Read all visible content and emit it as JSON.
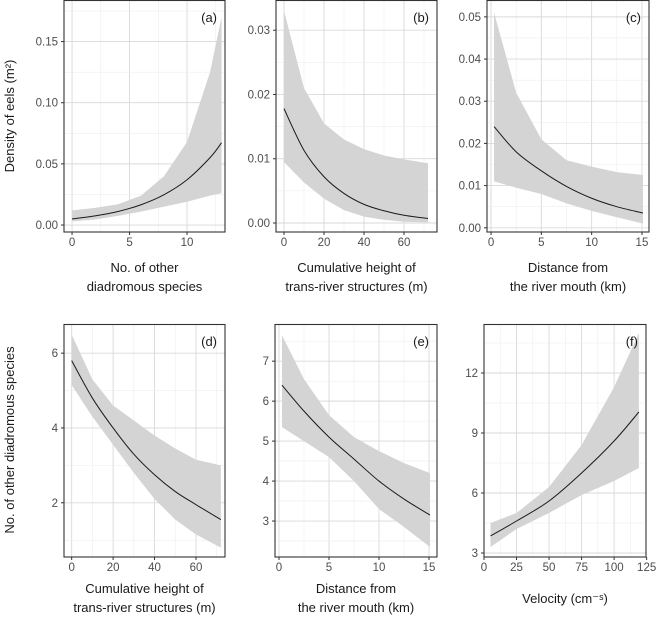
{
  "chart_data": [
    {
      "id": "a",
      "type": "line",
      "panel_label": "(a)",
      "xlabel": [
        "No. of other",
        "diadromous species"
      ],
      "ylabel": "Density of eels (m²)",
      "xlim": [
        -0.7,
        13.3
      ],
      "ylim": [
        -0.0057,
        0.184
      ],
      "xticks": [
        0,
        5,
        10
      ],
      "xtick_labels": [
        "0",
        "5",
        "10"
      ],
      "yticks": [
        0,
        0.05,
        0.1,
        0.15
      ],
      "ytick_labels": [
        "0.00",
        "0.05",
        "0.10",
        "0.15"
      ],
      "x": [
        0,
        2,
        4,
        6,
        8,
        10,
        12,
        13
      ],
      "fit": [
        0.005,
        0.0075,
        0.0111,
        0.0166,
        0.0248,
        0.037,
        0.0551,
        0.0673
      ],
      "lower": [
        0.003,
        0.0045,
        0.0075,
        0.011,
        0.015,
        0.019,
        0.024,
        0.026
      ],
      "upper": [
        0.012,
        0.014,
        0.017,
        0.024,
        0.04,
        0.068,
        0.125,
        0.17
      ]
    },
    {
      "id": "b",
      "type": "line",
      "panel_label": "(b)",
      "xlabel": [
        "Cumulative height of",
        "trans-river structures (m)"
      ],
      "xlim": [
        -4,
        76.5
      ],
      "ylim": [
        -0.0014,
        0.0347
      ],
      "xticks": [
        0,
        20,
        40,
        60
      ],
      "xtick_labels": [
        "0",
        "20",
        "40",
        "60"
      ],
      "yticks": [
        0,
        0.01,
        0.02,
        0.03
      ],
      "ytick_labels": [
        "0.00",
        "0.01",
        "0.02",
        "0.03"
      ],
      "x": [
        0,
        10,
        20,
        30,
        40,
        50,
        60,
        72
      ],
      "fit": [
        0.0178,
        0.0113,
        0.0072,
        0.0046,
        0.0029,
        0.0019,
        0.0012,
        0.0007
      ],
      "lower": [
        0.0095,
        0.0063,
        0.0038,
        0.002,
        0.001,
        0.0005,
        0.0002,
        0.0001
      ],
      "upper": [
        0.033,
        0.021,
        0.0155,
        0.013,
        0.0115,
        0.0105,
        0.0099,
        0.0093
      ]
    },
    {
      "id": "c",
      "type": "line",
      "panel_label": "(c)",
      "xlabel": [
        "Distance from",
        "the river mouth (km)"
      ],
      "xlim": [
        -0.4,
        15.7
      ],
      "ylim": [
        -0.001,
        0.054
      ],
      "xticks": [
        0,
        5,
        10,
        15
      ],
      "xtick_labels": [
        "0",
        "5",
        "10",
        "15"
      ],
      "yticks": [
        0,
        0.01,
        0.02,
        0.03,
        0.04,
        0.05
      ],
      "ytick_labels": [
        "0.00",
        "0.01",
        "0.02",
        "0.03",
        "0.04",
        "0.05"
      ],
      "x": [
        0.3,
        2.5,
        5,
        7.5,
        10,
        12.5,
        15.1
      ],
      "fit": [
        0.024,
        0.018,
        0.0135,
        0.0098,
        0.007,
        0.005,
        0.0035
      ],
      "lower": [
        0.011,
        0.0095,
        0.008,
        0.0058,
        0.004,
        0.0025,
        0.001
      ],
      "upper": [
        0.051,
        0.032,
        0.021,
        0.016,
        0.0145,
        0.0132,
        0.0125
      ]
    },
    {
      "id": "d",
      "type": "line",
      "panel_label": "(d)",
      "xlabel": [
        "Cumulative height of",
        "trans-river structures (m)"
      ],
      "ylabel": "No. of other diadromous species",
      "xlim": [
        -3.7,
        74
      ],
      "ylim": [
        0.55,
        6.78
      ],
      "xticks": [
        0,
        20,
        40,
        60
      ],
      "xtick_labels": [
        "0",
        "20",
        "40",
        "60"
      ],
      "yticks": [
        2,
        4,
        6
      ],
      "ytick_labels": [
        "2",
        "4",
        "6"
      ],
      "x": [
        0,
        10,
        20,
        30,
        40,
        50,
        60,
        72
      ],
      "fit": [
        5.8,
        4.8,
        4.0,
        3.3,
        2.75,
        2.3,
        1.95,
        1.55
      ],
      "lower": [
        5.15,
        4.3,
        3.55,
        2.8,
        2.1,
        1.55,
        1.15,
        0.8
      ],
      "upper": [
        6.5,
        5.3,
        4.6,
        4.2,
        3.8,
        3.45,
        3.15,
        3.0
      ]
    },
    {
      "id": "e",
      "type": "line",
      "panel_label": "(e)",
      "xlabel": [
        "Distance from",
        "the river mouth (km)"
      ],
      "xlim": [
        -0.4,
        15.8
      ],
      "ylim": [
        2.1,
        7.93
      ],
      "xticks": [
        0,
        5,
        10,
        15
      ],
      "xtick_labels": [
        "0",
        "5",
        "10",
        "15"
      ],
      "yticks": [
        3,
        4,
        5,
        6,
        7
      ],
      "ytick_labels": [
        "3",
        "4",
        "5",
        "6",
        "7"
      ],
      "x": [
        0.3,
        2.5,
        5,
        7.5,
        10,
        12.5,
        15.1
      ],
      "fit": [
        6.4,
        5.75,
        5.1,
        4.55,
        4.0,
        3.55,
        3.15
      ],
      "lower": [
        5.35,
        5.0,
        4.6,
        4.0,
        3.3,
        2.85,
        2.35
      ],
      "upper": [
        7.65,
        6.55,
        5.65,
        5.1,
        4.75,
        4.45,
        4.2
      ]
    },
    {
      "id": "f",
      "type": "line",
      "panel_label": "(f)",
      "xlabel": [
        "Velocity (cm⁻ˢ)"
      ],
      "xlim": [
        0,
        124.5
      ],
      "ylim": [
        2.8,
        14.45
      ],
      "xticks": [
        0,
        25,
        50,
        75,
        100,
        125
      ],
      "xtick_labels": [
        "0",
        "25",
        "50",
        "75",
        "100",
        "125"
      ],
      "yticks": [
        3,
        6,
        9,
        12
      ],
      "ytick_labels": [
        "3",
        "6",
        "9",
        "12"
      ],
      "x": [
        5,
        25,
        50,
        75,
        100,
        119
      ],
      "fit": [
        3.85,
        4.6,
        5.6,
        7.0,
        8.6,
        10.05
      ],
      "lower": [
        3.3,
        4.2,
        5.0,
        5.9,
        6.6,
        7.25
      ],
      "upper": [
        4.5,
        5.0,
        6.3,
        8.4,
        11.3,
        14.0
      ]
    }
  ],
  "colors": {
    "ribbon": "#d4d4d4",
    "line": "#1a1a1a",
    "grid_major": "#d9d9d9",
    "grid_minor": "#eeeeee",
    "frame": "#333333"
  }
}
